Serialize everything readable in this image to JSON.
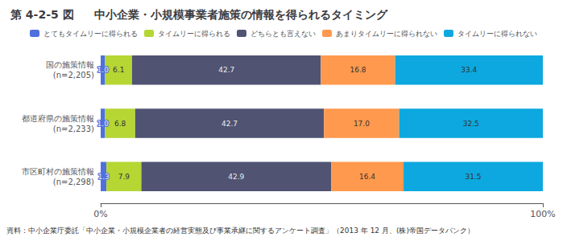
{
  "chart_data": {
    "type": "bar",
    "orientation": "horizontal",
    "stacked": true,
    "title": "中小企業・小規模事業者施策の情報を得られるタイミング",
    "subtitle": "第 4-2-5 図",
    "annotations": [
      "資料：中小企業庁委託「中小企業・小規模企業者の経営実態及び事業承継に関するアンケート調査」（2013 年 12 月、(株)帝国データバンク）"
    ],
    "categories": [
      "国の施策情報\n(n=2,205)",
      "都道府県の施策情報\n(n=2,233)",
      "市区町村の施策情報\n(n=2,298)"
    ],
    "series": [
      {
        "name": "とてもタイムリーに得られる",
        "values": [
          1.0,
          1.0,
          1.3
        ],
        "value_labels": [
          "1.0",
          "1.0",
          "1.3"
        ]
      },
      {
        "name": "タイムリーに得られる",
        "values": [
          6.1,
          6.8,
          7.9
        ],
        "value_labels": [
          "6.1",
          "6.8",
          "7.9"
        ]
      },
      {
        "name": "どちらとも言えない",
        "values": [
          42.7,
          42.7,
          42.9
        ],
        "value_labels": [
          "42.7",
          "42.7",
          "42.9"
        ]
      },
      {
        "name": "あまりタイムリーに得られない",
        "values": [
          16.8,
          17.0,
          16.4
        ],
        "value_labels": [
          "16.8",
          "17.0",
          "16.4"
        ]
      },
      {
        "name": "タイムリーに得られない",
        "values": [
          33.4,
          32.5,
          31.5
        ],
        "value_labels": [
          "33.4",
          "32.5",
          "31.5"
        ]
      }
    ],
    "xlim": [
      0,
      100
    ],
    "xticks": [
      {
        "value": 0,
        "label": "0%"
      },
      {
        "value": 100,
        "label": "100%"
      }
    ],
    "grid": false,
    "legend": "top",
    "data_labels": true
  }
}
